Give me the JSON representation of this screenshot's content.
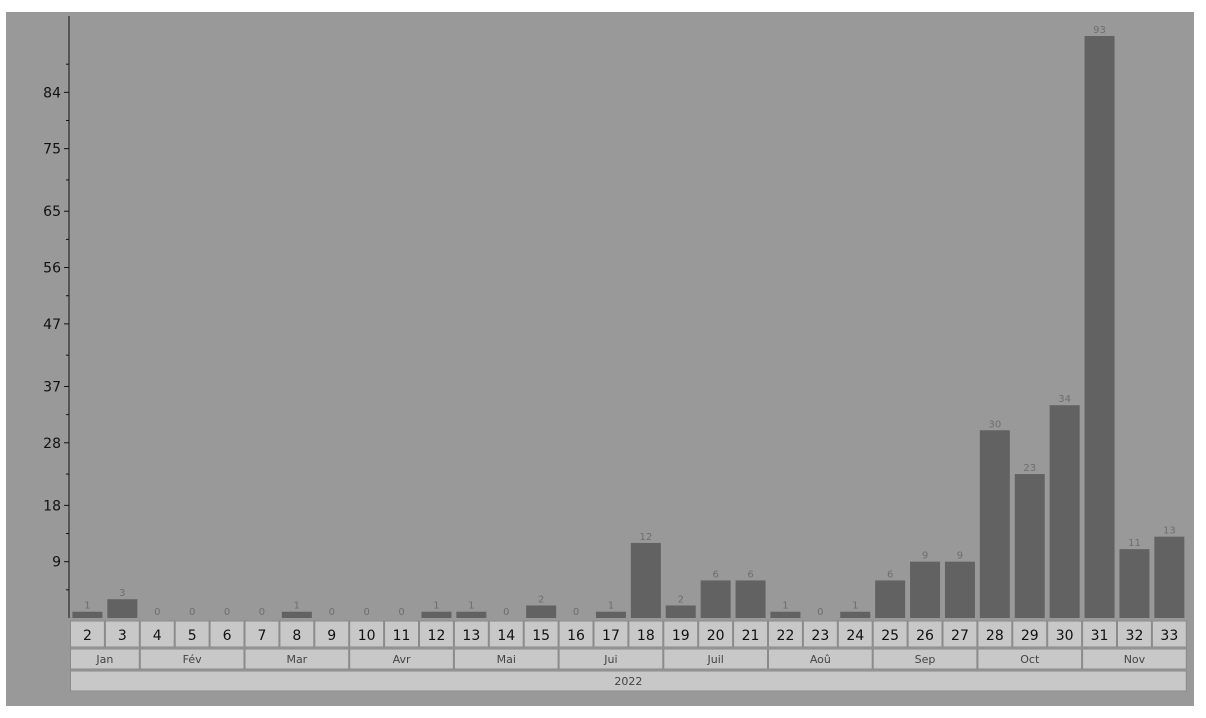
{
  "chart_data": {
    "type": "bar",
    "title": "",
    "xlabel": "",
    "ylabel": "",
    "ylim": [
      0,
      93
    ],
    "yticks": [
      9,
      18,
      28,
      37,
      47,
      56,
      65,
      75,
      84
    ],
    "categories": [
      "2",
      "3",
      "4",
      "5",
      "6",
      "7",
      "8",
      "9",
      "10",
      "11",
      "12",
      "13",
      "14",
      "15",
      "16",
      "17",
      "18",
      "19",
      "20",
      "21",
      "22",
      "23",
      "24",
      "25",
      "26",
      "27",
      "28",
      "29",
      "30",
      "31",
      "32",
      "33"
    ],
    "values": [
      1,
      3,
      0,
      0,
      0,
      0,
      1,
      0,
      0,
      0,
      1,
      1,
      0,
      2,
      0,
      1,
      12,
      2,
      6,
      6,
      1,
      0,
      1,
      6,
      9,
      9,
      30,
      23,
      34,
      93,
      11,
      13
    ],
    "months": [
      {
        "label": "Jan",
        "span": 2
      },
      {
        "label": "Fév",
        "span": 3
      },
      {
        "label": "Mar",
        "span": 3
      },
      {
        "label": "Avr",
        "span": 3
      },
      {
        "label": "Mai",
        "span": 3
      },
      {
        "label": "Jui",
        "span": 3
      },
      {
        "label": "Juil",
        "span": 3
      },
      {
        "label": "Aoû",
        "span": 3
      },
      {
        "label": "Sep",
        "span": 3
      },
      {
        "label": "Oct",
        "span": 3
      },
      {
        "label": "Nov",
        "span": 3
      }
    ],
    "year": "2022",
    "grid": false,
    "legend": "none",
    "colors": {
      "background": "#999999",
      "bar": "#626262",
      "cell": "#c8c8c8",
      "cell_border": "#8a8a8a",
      "axis": "#111111"
    }
  }
}
